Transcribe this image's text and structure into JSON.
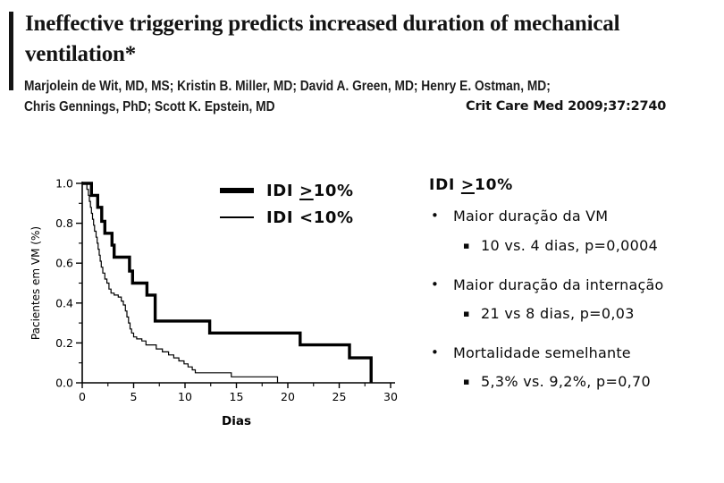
{
  "slide": {
    "title_line1": "Ineffective triggering predicts increased duration of mechanical",
    "title_line2": "ventilation*",
    "authors_line1": "Marjolein de Wit, MD, MS; Kristin B. Miller, MD; David A. Green, MD; Henry E. Ostman, MD;",
    "authors_line2": "Chris Gennings, PhD; Scott K. Epstein, MD",
    "citation": "Crit Care Med 2009;37:2740"
  },
  "chart_data": {
    "type": "line",
    "subtype": "kaplan-meier-step",
    "title": "",
    "xlabel": "Dias",
    "ylabel": "Pacientes em VM (%)",
    "xlim": [
      0,
      30
    ],
    "ylim": [
      0,
      1.0
    ],
    "x_major_ticks": [
      0,
      5,
      10,
      15,
      20,
      25,
      30
    ],
    "x_minor_ticks": [
      2.5,
      7.5,
      12.5,
      17.5,
      22.5,
      27.5
    ],
    "y_major_ticks": [
      0.0,
      0.2,
      0.4,
      0.6,
      0.8,
      1.0
    ],
    "y_minor_ticks": [
      0.1,
      0.3,
      0.5,
      0.7,
      0.9
    ],
    "grid": false,
    "legend_position": "top-right",
    "line_color": "#000000",
    "series": [
      {
        "name": "IDI >=10%",
        "style": "thick",
        "points": [
          [
            0,
            1.0
          ],
          [
            0.9,
            0.94
          ],
          [
            1.5,
            0.88
          ],
          [
            1.9,
            0.81
          ],
          [
            2.2,
            0.75
          ],
          [
            2.9,
            0.69
          ],
          [
            3.1,
            0.63
          ],
          [
            4.6,
            0.56
          ],
          [
            4.9,
            0.5
          ],
          [
            6.3,
            0.44
          ],
          [
            7.1,
            0.31
          ],
          [
            12.4,
            0.25
          ],
          [
            21.2,
            0.19
          ],
          [
            26.0,
            0.125
          ],
          [
            28.1,
            0.0
          ]
        ]
      },
      {
        "name": "IDI <10%",
        "style": "thin",
        "points": [
          [
            0,
            1.0
          ],
          [
            0.45,
            0.97
          ],
          [
            0.6,
            0.94
          ],
          [
            0.7,
            0.91
          ],
          [
            0.8,
            0.88
          ],
          [
            0.9,
            0.85
          ],
          [
            1.0,
            0.82
          ],
          [
            1.1,
            0.79
          ],
          [
            1.2,
            0.76
          ],
          [
            1.35,
            0.73
          ],
          [
            1.45,
            0.7
          ],
          [
            1.55,
            0.67
          ],
          [
            1.65,
            0.64
          ],
          [
            1.75,
            0.61
          ],
          [
            1.85,
            0.58
          ],
          [
            2.0,
            0.55
          ],
          [
            2.2,
            0.52
          ],
          [
            2.4,
            0.5
          ],
          [
            2.6,
            0.47
          ],
          [
            2.8,
            0.45
          ],
          [
            3.1,
            0.44
          ],
          [
            3.5,
            0.43
          ],
          [
            3.8,
            0.41
          ],
          [
            4.0,
            0.39
          ],
          [
            4.2,
            0.36
          ],
          [
            4.35,
            0.33
          ],
          [
            4.5,
            0.3
          ],
          [
            4.65,
            0.27
          ],
          [
            4.8,
            0.25
          ],
          [
            5.0,
            0.23
          ],
          [
            5.3,
            0.22
          ],
          [
            5.8,
            0.21
          ],
          [
            6.2,
            0.19
          ],
          [
            7.2,
            0.17
          ],
          [
            7.8,
            0.155
          ],
          [
            8.4,
            0.14
          ],
          [
            8.9,
            0.125
          ],
          [
            9.4,
            0.11
          ],
          [
            9.9,
            0.095
          ],
          [
            10.3,
            0.08
          ],
          [
            10.7,
            0.065
          ],
          [
            11.0,
            0.05
          ],
          [
            14.5,
            0.03
          ],
          [
            19.0,
            0.0
          ]
        ]
      }
    ]
  },
  "legend": {
    "items": [
      {
        "pre": "IDI ",
        "symbol": ">",
        "post": "10%"
      },
      {
        "pre": "IDI ",
        "symbol": "<",
        "post": "10%"
      }
    ]
  },
  "right_panel": {
    "heading_pre": "IDI ",
    "heading_symbol": ">",
    "heading_post": "10%",
    "bullet_glyph": "•",
    "sub_bullet_glyph": "▪",
    "bullets": [
      {
        "text": "Maior duração da VM",
        "sub": "10 vs. 4 dias, p=0,0004"
      },
      {
        "text": "Maior duração da internação",
        "sub": "21 vs 8 dias, p=0,03"
      },
      {
        "text": "Mortalidade semelhante",
        "sub": "5,3% vs. 9,2%, p=0,70"
      }
    ]
  },
  "colors": {
    "ink": "#000000",
    "background": "#ffffff"
  }
}
